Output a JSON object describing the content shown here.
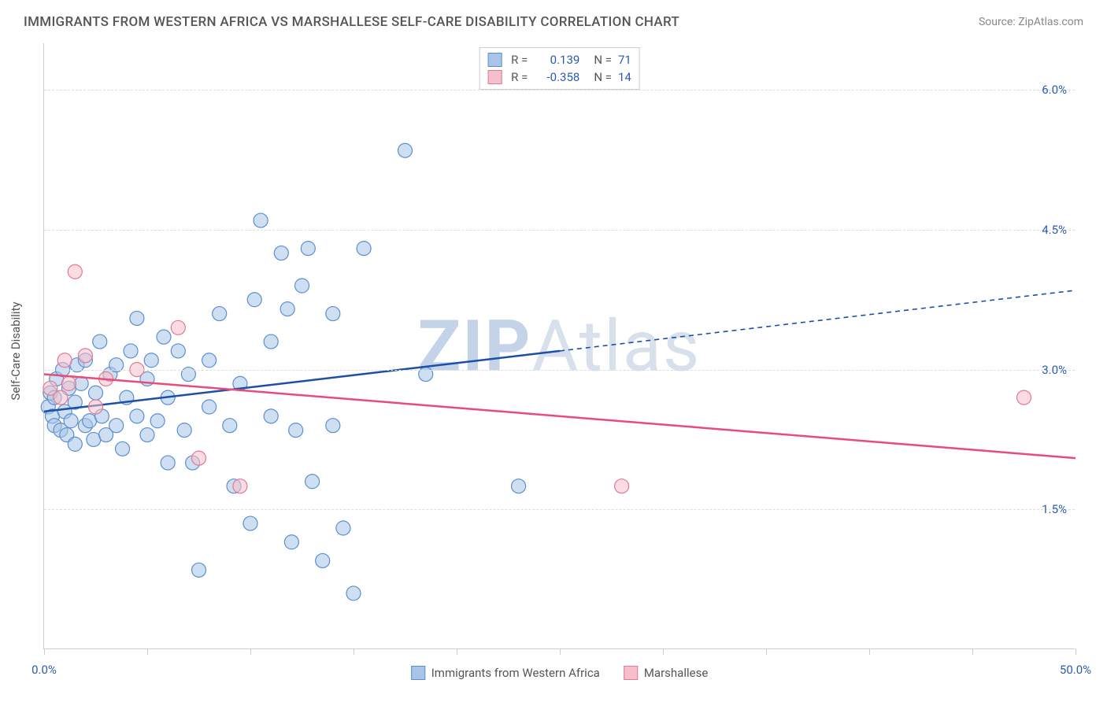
{
  "title": "IMMIGRANTS FROM WESTERN AFRICA VS MARSHALLESE SELF-CARE DISABILITY CORRELATION CHART",
  "source": "Source: ZipAtlas.com",
  "ylabel": "Self-Care Disability",
  "watermark_bold": "ZIP",
  "watermark_rest": "Atlas",
  "chart": {
    "type": "scatter",
    "xlim": [
      0,
      50
    ],
    "ylim": [
      0,
      6.5
    ],
    "xtick_positions": [
      0,
      5,
      10,
      15,
      20,
      25,
      30,
      35,
      40,
      45,
      50
    ],
    "xtick_labels": {
      "0": "0.0%",
      "50": "50.0%"
    },
    "ytick_positions": [
      1.5,
      3.0,
      4.5,
      6.0
    ],
    "ytick_labels": [
      "1.5%",
      "3.0%",
      "4.5%",
      "6.0%"
    ],
    "background_color": "#ffffff",
    "grid_color": "#dddddd",
    "axis_color": "#cccccc",
    "tick_label_color": "#2a5db0",
    "marker_radius": 9,
    "marker_opacity": 0.55,
    "series": [
      {
        "name": "Immigrants from Western Africa",
        "color_fill": "#a8c5e8",
        "color_stroke": "#5b8fd0",
        "trend_color": "#1b4fa8",
        "R": "0.139",
        "N": "71",
        "trend": {
          "x1": 0,
          "y1": 2.55,
          "x2": 50,
          "y2": 3.85,
          "solid_until_x": 25
        },
        "points": [
          [
            0.2,
            2.6
          ],
          [
            0.3,
            2.75
          ],
          [
            0.4,
            2.5
          ],
          [
            0.5,
            2.7
          ],
          [
            0.6,
            2.9
          ],
          [
            0.5,
            2.4
          ],
          [
            0.8,
            2.35
          ],
          [
            0.9,
            3.0
          ],
          [
            1.0,
            2.55
          ],
          [
            1.1,
            2.3
          ],
          [
            1.2,
            2.8
          ],
          [
            1.3,
            2.45
          ],
          [
            1.5,
            2.65
          ],
          [
            1.6,
            3.05
          ],
          [
            1.5,
            2.2
          ],
          [
            1.8,
            2.85
          ],
          [
            2.0,
            2.4
          ],
          [
            2.0,
            3.1
          ],
          [
            2.2,
            2.45
          ],
          [
            2.4,
            2.25
          ],
          [
            2.5,
            2.75
          ],
          [
            2.7,
            3.3
          ],
          [
            2.8,
            2.5
          ],
          [
            3.0,
            2.3
          ],
          [
            3.2,
            2.95
          ],
          [
            3.5,
            3.05
          ],
          [
            3.5,
            2.4
          ],
          [
            3.8,
            2.15
          ],
          [
            4.0,
            2.7
          ],
          [
            4.2,
            3.2
          ],
          [
            4.5,
            2.5
          ],
          [
            4.5,
            3.55
          ],
          [
            5.0,
            2.9
          ],
          [
            5.0,
            2.3
          ],
          [
            5.2,
            3.1
          ],
          [
            5.5,
            2.45
          ],
          [
            5.8,
            3.35
          ],
          [
            6.0,
            2.0
          ],
          [
            6.0,
            2.7
          ],
          [
            6.5,
            3.2
          ],
          [
            6.8,
            2.35
          ],
          [
            7.0,
            2.95
          ],
          [
            7.2,
            2.0
          ],
          [
            7.5,
            0.85
          ],
          [
            8.0,
            2.6
          ],
          [
            8.0,
            3.1
          ],
          [
            8.5,
            3.6
          ],
          [
            9.0,
            2.4
          ],
          [
            9.2,
            1.75
          ],
          [
            9.5,
            2.85
          ],
          [
            10.0,
            1.35
          ],
          [
            10.2,
            3.75
          ],
          [
            10.5,
            4.6
          ],
          [
            11.0,
            2.5
          ],
          [
            11.0,
            3.3
          ],
          [
            11.5,
            4.25
          ],
          [
            11.8,
            3.65
          ],
          [
            12.0,
            1.15
          ],
          [
            12.2,
            2.35
          ],
          [
            12.5,
            3.9
          ],
          [
            12.8,
            4.3
          ],
          [
            13.0,
            1.8
          ],
          [
            13.5,
            0.95
          ],
          [
            14.0,
            3.6
          ],
          [
            14.5,
            1.3
          ],
          [
            15.0,
            0.6
          ],
          [
            15.5,
            4.3
          ],
          [
            17.5,
            5.35
          ],
          [
            18.5,
            2.95
          ],
          [
            23.0,
            1.75
          ],
          [
            14.0,
            2.4
          ]
        ]
      },
      {
        "name": "Marshallese",
        "color_fill": "#f5c0cb",
        "color_stroke": "#e07a95",
        "trend_color": "#e94b7a",
        "R": "-0.358",
        "N": "14",
        "trend": {
          "x1": 0,
          "y1": 2.95,
          "x2": 50,
          "y2": 2.05,
          "solid_until_x": 50
        },
        "points": [
          [
            0.3,
            2.8
          ],
          [
            0.8,
            2.7
          ],
          [
            1.0,
            3.1
          ],
          [
            1.2,
            2.85
          ],
          [
            1.5,
            4.05
          ],
          [
            2.0,
            3.15
          ],
          [
            2.5,
            2.6
          ],
          [
            4.5,
            3.0
          ],
          [
            6.5,
            3.45
          ],
          [
            7.5,
            2.05
          ],
          [
            9.5,
            1.75
          ],
          [
            28.0,
            1.75
          ],
          [
            47.5,
            2.7
          ],
          [
            3.0,
            2.9
          ]
        ]
      }
    ]
  },
  "legend_bottom": [
    {
      "label": "Immigrants from Western Africa",
      "fill": "#a8c5e8",
      "stroke": "#5b8fd0"
    },
    {
      "label": "Marshallese",
      "fill": "#f5c0cb",
      "stroke": "#e07a95"
    }
  ]
}
